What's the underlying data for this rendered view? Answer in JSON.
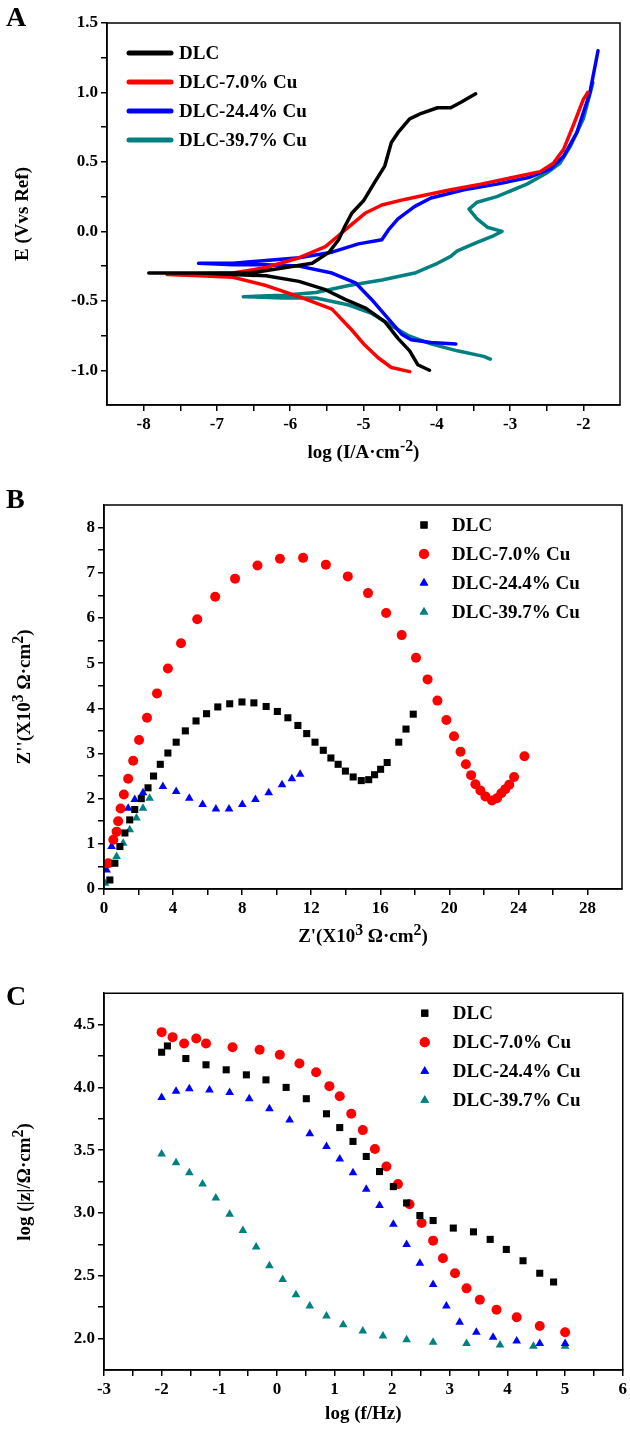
{
  "chart_data": [
    {
      "type": "line",
      "annotations": [
        "A"
      ],
      "xlabel": "log (I/A·cm$^{-2}$)",
      "ylabel": "E (Vvs Ref)",
      "legend": "top left",
      "line_style": "solid",
      "xlim": [
        -8.5,
        -1.5
      ],
      "ylim": [
        -1.25,
        1.5
      ],
      "xticks": [
        -8,
        {
          "value": -7.5,
          "label": null
        },
        -7,
        {
          "value": -6.5,
          "label": null
        },
        -6,
        {
          "value": -5.5,
          "label": null
        },
        -5,
        {
          "value": -4.5,
          "label": null
        },
        -4,
        {
          "value": -3.5,
          "label": null
        },
        -3,
        {
          "value": -2.5,
          "label": null
        },
        -2
      ],
      "yticks": [
        {
          "value": -1,
          "label": "-1.0"
        },
        {
          "value": -0.75,
          "label": null
        },
        {
          "value": -0.5,
          "label": "-0.5"
        },
        {
          "value": -0.25,
          "label": null
        },
        {
          "value": 0,
          "label": "0.0"
        },
        {
          "value": 0.25,
          "label": null
        },
        {
          "value": 0.5,
          "label": "0.5"
        },
        {
          "value": 0.75,
          "label": null
        },
        {
          "value": 1,
          "label": "1.0"
        },
        {
          "value": 1.25,
          "label": null
        },
        {
          "value": 1.5,
          "label": "1.5"
        }
      ],
      "series": [
        {
          "name": "DLC",
          "color": "#000000",
          "x": [
            -4.1,
            -4.26,
            -4.37,
            -4.53,
            -4.71,
            -4.98,
            -5.25,
            -5.52,
            -5.88,
            -6.33,
            -6.78,
            -7.23,
            -7.93,
            -6.55,
            -6.06,
            -5.7,
            -5.47,
            -5.34,
            -5.25,
            -5.16,
            -5.0,
            -4.84,
            -4.71,
            -4.62,
            -4.53,
            -4.37,
            -4.21,
            -3.99,
            -3.81,
            -3.67,
            -3.47
          ],
          "values": [
            -1.0,
            -0.96,
            -0.86,
            -0.77,
            -0.65,
            -0.55,
            -0.49,
            -0.42,
            -0.36,
            -0.32,
            -0.31,
            -0.3,
            -0.3,
            -0.3,
            -0.26,
            -0.23,
            -0.15,
            -0.06,
            0.04,
            0.13,
            0.22,
            0.36,
            0.47,
            0.64,
            0.71,
            0.81,
            0.85,
            0.89,
            0.89,
            0.93,
            0.99
          ]
        },
        {
          "name": "DLC-7.0% Cu",
          "color": "#ff0000",
          "x": [
            -4.37,
            -4.62,
            -4.8,
            -4.98,
            -5.16,
            -5.43,
            -5.88,
            -6.33,
            -6.78,
            -7.23,
            -7.68,
            -6.78,
            -6.33,
            -5.88,
            -5.52,
            -5.34,
            -5.16,
            -4.98,
            -4.75,
            -4.44,
            -4.17,
            -3.81,
            -3.4,
            -2.95,
            -2.59,
            -2.41,
            -2.27,
            -2.14,
            -2.0,
            -1.94
          ],
          "values": [
            -1.01,
            -0.98,
            -0.91,
            -0.82,
            -0.71,
            -0.56,
            -0.47,
            -0.39,
            -0.33,
            -0.32,
            -0.31,
            -0.3,
            -0.26,
            -0.19,
            -0.11,
            -0.03,
            0.05,
            0.13,
            0.19,
            0.23,
            0.26,
            0.3,
            0.34,
            0.39,
            0.43,
            0.49,
            0.59,
            0.76,
            0.95,
            1.0
          ]
        },
        {
          "name": "DLC-24.4% Cu",
          "color": "#0000ff",
          "x": [
            -3.74,
            -4.08,
            -4.35,
            -4.48,
            -4.66,
            -4.89,
            -5.11,
            -5.43,
            -5.88,
            -6.33,
            -6.78,
            -7.25,
            -6.78,
            -6.33,
            -5.88,
            -5.43,
            -5.07,
            -4.75,
            -4.66,
            -4.53,
            -4.3,
            -4.08,
            -3.63,
            -3.18,
            -2.73,
            -2.45,
            -2.27,
            -2.09,
            -1.91,
            -1.8
          ],
          "values": [
            -0.81,
            -0.8,
            -0.78,
            -0.74,
            -0.63,
            -0.49,
            -0.37,
            -0.3,
            -0.25,
            -0.24,
            -0.24,
            -0.23,
            -0.23,
            -0.21,
            -0.19,
            -0.15,
            -0.09,
            -0.06,
            0.01,
            0.09,
            0.18,
            0.24,
            0.3,
            0.34,
            0.39,
            0.45,
            0.54,
            0.71,
            1.0,
            1.3
          ]
        },
        {
          "name": "DLC-39.7% Cu",
          "color": "#008080",
          "x": [
            -3.27,
            -3.36,
            -3.72,
            -4.08,
            -4.39,
            -4.62,
            -4.89,
            -5.2,
            -5.65,
            -6.1,
            -6.64,
            -6.1,
            -5.65,
            -5.2,
            -4.75,
            -4.3,
            -4.12,
            -3.99,
            -3.81,
            -3.72,
            -3.45,
            -3.22,
            -3.11,
            -3.31,
            -3.45,
            -3.56,
            -3.45,
            -3.18,
            -2.77,
            -2.5,
            -2.32,
            -2.18,
            -2.0,
            -1.87
          ],
          "values": [
            -0.92,
            -0.9,
            -0.86,
            -0.81,
            -0.75,
            -0.68,
            -0.59,
            -0.53,
            -0.48,
            -0.48,
            -0.47,
            -0.46,
            -0.44,
            -0.39,
            -0.35,
            -0.3,
            -0.26,
            -0.23,
            -0.18,
            -0.14,
            -0.08,
            -0.03,
            0.0,
            0.03,
            0.09,
            0.16,
            0.21,
            0.25,
            0.34,
            0.42,
            0.49,
            0.61,
            0.81,
            1.07
          ]
        }
      ]
    },
    {
      "type": "scatter",
      "annotations": [
        "B"
      ],
      "xlabel": "Z'(X10$^{3}$ Ω·cm$^{2}$)",
      "ylabel": "Z''(X10$^{3}$ Ω·cm$^{2}$)",
      "legend": "top right",
      "xlim": [
        0,
        30
      ],
      "ylim": [
        0,
        8.5
      ],
      "xticks": [
        0,
        {
          "value": 2,
          "label": null
        },
        4,
        {
          "value": 6,
          "label": null
        },
        8,
        {
          "value": 10,
          "label": null
        },
        12,
        {
          "value": 14,
          "label": null
        },
        16,
        {
          "value": 18,
          "label": null
        },
        20,
        {
          "value": 22,
          "label": null
        },
        24,
        {
          "value": 26,
          "label": null
        },
        28
      ],
      "yticks": [
        0,
        {
          "value": 0.5,
          "label": null
        },
        1,
        {
          "value": 1.5,
          "label": null
        },
        2,
        {
          "value": 2.5,
          "label": null
        },
        3,
        {
          "value": 3.5,
          "label": null
        },
        4,
        {
          "value": 4.5,
          "label": null
        },
        5,
        {
          "value": 5.5,
          "label": null
        },
        6,
        {
          "value": 6.5,
          "label": null
        },
        7,
        {
          "value": 7.5,
          "label": null
        },
        8
      ],
      "series": [
        {
          "name": "DLC",
          "color": "#000000",
          "marker": "square",
          "x": [
            0.34,
            0.63,
            0.92,
            1.21,
            1.49,
            1.78,
            2.16,
            2.55,
            2.87,
            3.26,
            3.7,
            4.18,
            4.71,
            5.33,
            5.94,
            6.59,
            7.28,
            7.99,
            8.68,
            9.39,
            10.04,
            10.65,
            11.23,
            11.74,
            12.22,
            12.7,
            13.14,
            13.56,
            13.98,
            14.43,
            14.9,
            15.33,
            15.67,
            16.02,
            16.4,
            17.07,
            17.49,
            17.91
          ],
          "values": [
            0.2,
            0.57,
            0.94,
            1.24,
            1.53,
            1.76,
            2.0,
            2.24,
            2.5,
            2.76,
            3.01,
            3.25,
            3.5,
            3.72,
            3.88,
            4.03,
            4.1,
            4.14,
            4.12,
            4.04,
            3.93,
            3.79,
            3.62,
            3.44,
            3.25,
            3.07,
            2.9,
            2.76,
            2.61,
            2.48,
            2.4,
            2.42,
            2.53,
            2.65,
            2.8,
            3.25,
            3.54,
            3.87
          ]
        },
        {
          "name": "DLC-7.0% Cu",
          "color": "#ff0000",
          "marker": "circle",
          "x": [
            0.25,
            0.54,
            0.73,
            0.82,
            0.96,
            1.15,
            1.4,
            1.69,
            2.03,
            2.49,
            3.07,
            3.7,
            4.46,
            5.4,
            6.44,
            7.59,
            8.89,
            10.19,
            11.53,
            12.85,
            14.12,
            15.29,
            16.34,
            17.24,
            18.07,
            18.74,
            19.31,
            19.83,
            20.27,
            20.65,
            20.96,
            21.26,
            21.51,
            21.8,
            22.09,
            22.47,
            22.76,
            23.01,
            23.24,
            23.47,
            23.75,
            24.35
          ],
          "values": [
            0.57,
            1.09,
            1.27,
            1.5,
            1.78,
            2.09,
            2.44,
            2.84,
            3.3,
            3.79,
            4.33,
            4.88,
            5.44,
            5.97,
            6.47,
            6.87,
            7.16,
            7.31,
            7.33,
            7.18,
            6.92,
            6.55,
            6.11,
            5.62,
            5.12,
            4.64,
            4.17,
            3.74,
            3.38,
            3.04,
            2.76,
            2.52,
            2.32,
            2.18,
            2.05,
            1.96,
            2.01,
            2.12,
            2.21,
            2.31,
            2.48,
            2.94
          ]
        },
        {
          "name": "DLC-24.4% Cu",
          "color": "#0000ff",
          "marker": "triangle",
          "x": [
            0.15,
            0.44,
            0.73,
            1.02,
            1.4,
            1.78,
            2.26,
            2.64,
            3.41,
            4.18,
            4.94,
            5.71,
            6.48,
            7.24,
            8.01,
            8.77,
            9.54,
            10.31,
            10.88,
            11.36
          ],
          "values": [
            0.42,
            0.94,
            null,
            null,
            1.79,
            1.98,
            2.13,
            null,
            2.27,
            2.16,
            2.01,
            1.87,
            1.77,
            1.77,
            1.87,
            1.98,
            2.13,
            2.31,
            2.44,
            2.54
          ]
        },
        {
          "name": "DLC-39.7% Cu",
          "color": "#008080",
          "marker": "triangle",
          "x": [
            0.06,
            0.34,
            0.73,
            1.11,
            1.49,
            1.88,
            2.26,
            2.64
          ],
          "values": [
            0.13,
            null,
            0.72,
            1.01,
            1.31,
            1.57,
            1.79,
            2.01
          ]
        }
      ]
    },
    {
      "type": "scatter",
      "annotations": [
        "C"
      ],
      "xlabel": "log (f/Hz)",
      "ylabel": "log (|z|/Ω·cm$^{2}$)",
      "legend": "top right",
      "xlim": [
        -3,
        6
      ],
      "ylim": [
        1.75,
        4.75
      ],
      "xticks": [
        -3,
        {
          "value": -2.5,
          "label": null
        },
        -2,
        {
          "value": -1.5,
          "label": null
        },
        -1,
        {
          "value": -0.5,
          "label": null
        },
        0,
        {
          "value": 0.5,
          "label": null
        },
        1,
        {
          "value": 1.5,
          "label": null
        },
        2,
        {
          "value": 2.5,
          "label": null
        },
        3,
        {
          "value": 3.5,
          "label": null
        },
        4,
        {
          "value": 4.5,
          "label": null
        },
        5,
        {
          "value": 5.5,
          "label": null
        },
        6
      ],
      "yticks": [
        {
          "value": 2,
          "label": "2.0"
        },
        {
          "value": 2.25,
          "label": null
        },
        {
          "value": 2.5,
          "label": "2.5"
        },
        {
          "value": 2.75,
          "label": null
        },
        {
          "value": 3,
          "label": "3.0"
        },
        {
          "value": 3.25,
          "label": null
        },
        {
          "value": 3.5,
          "label": "3.5"
        },
        {
          "value": 3.75,
          "label": null
        },
        {
          "value": 4,
          "label": "4.0"
        },
        {
          "value": 4.25,
          "label": null
        },
        {
          "value": 4.5,
          "label": "4.5"
        }
      ],
      "series": [
        {
          "name": "DLC",
          "color": "#000000",
          "marker": "square",
          "x": [
            -2.0,
            -1.9,
            -1.58,
            -1.23,
            -0.88,
            -0.53,
            -0.19,
            0.16,
            0.51,
            0.86,
            1.09,
            1.32,
            1.55,
            1.78,
            2.02,
            2.25,
            2.48,
            2.71,
            3.06,
            3.41,
            3.7,
            3.98,
            4.27,
            4.56,
            4.8
          ],
          "values": [
            4.28,
            4.33,
            4.23,
            4.18,
            4.14,
            4.1,
            4.06,
            4.0,
            3.91,
            3.79,
            3.68,
            3.57,
            3.45,
            3.33,
            3.21,
            3.08,
            2.98,
            2.94,
            2.88,
            2.85,
            2.79,
            2.71,
            2.62,
            2.52,
            2.45
          ]
        },
        {
          "name": "DLC-7.0% Cu",
          "color": "#ff0000",
          "marker": "circle",
          "x": [
            -2.0,
            -1.81,
            -1.61,
            -1.4,
            -1.23,
            -0.77,
            -0.3,
            0.05,
            0.39,
            0.68,
            0.91,
            1.09,
            1.29,
            1.49,
            1.7,
            1.9,
            2.1,
            2.3,
            2.51,
            2.71,
            2.88,
            3.09,
            3.29,
            3.52,
            3.81,
            4.16,
            4.56,
            5.0
          ],
          "values": [
            4.44,
            4.4,
            4.35,
            4.39,
            4.35,
            4.32,
            4.3,
            4.26,
            4.19,
            4.12,
            4.01,
            3.93,
            3.79,
            3.66,
            3.51,
            3.37,
            3.23,
            3.07,
            2.92,
            2.78,
            2.64,
            2.52,
            2.4,
            2.31,
            2.23,
            2.17,
            2.1,
            2.05
          ]
        },
        {
          "name": "DLC-24.4% Cu",
          "color": "#0000ff",
          "marker": "triangle",
          "x": [
            -2.0,
            -1.75,
            -1.52,
            -1.17,
            -0.82,
            -0.48,
            -0.13,
            0.22,
            0.57,
            0.86,
            1.09,
            1.32,
            1.55,
            1.78,
            2.02,
            2.25,
            2.48,
            2.71,
            2.94,
            3.17,
            3.46,
            3.75,
            4.16,
            4.56,
            5.0
          ],
          "values": [
            3.92,
            3.97,
            3.99,
            3.98,
            3.96,
            3.91,
            3.83,
            3.74,
            3.63,
            3.53,
            3.43,
            3.32,
            3.19,
            3.06,
            2.91,
            2.75,
            2.6,
            2.43,
            2.26,
            2.13,
            2.05,
            2.01,
            1.98,
            1.96,
            1.96
          ]
        },
        {
          "name": "DLC-39.7% Cu",
          "color": "#008080",
          "marker": "triangle",
          "x": [
            -2.0,
            -1.75,
            -1.52,
            -1.29,
            -1.06,
            -0.82,
            -0.59,
            -0.36,
            -0.13,
            0.1,
            0.33,
            0.57,
            0.86,
            1.15,
            1.49,
            1.84,
            2.25,
            2.71,
            3.29,
            3.87,
            4.45,
            5.0
          ],
          "values": [
            3.47,
            3.4,
            3.32,
            3.23,
            3.12,
            2.99,
            2.86,
            2.73,
            2.58,
            2.47,
            2.35,
            2.26,
            2.18,
            2.11,
            2.06,
            2.02,
            1.99,
            1.97,
            1.96,
            1.95,
            1.94,
            1.94
          ]
        }
      ]
    }
  ]
}
